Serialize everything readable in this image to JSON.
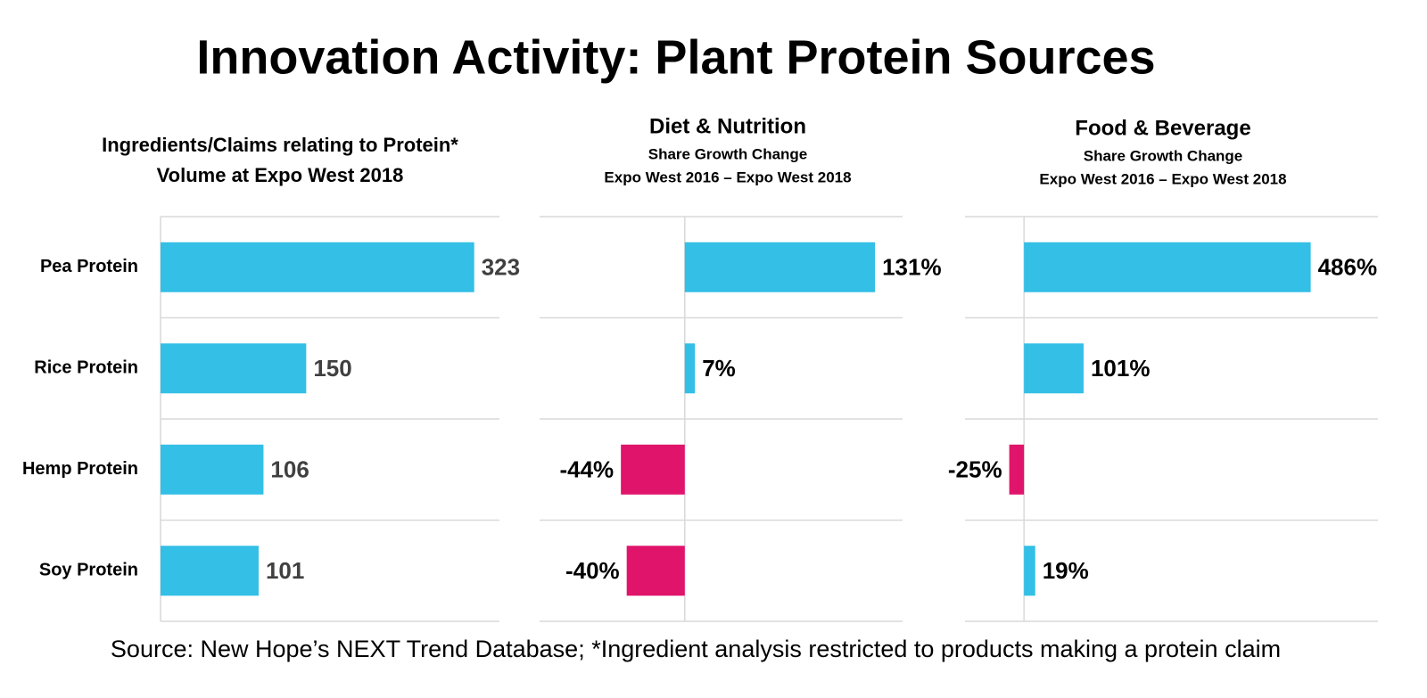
{
  "title": "Innovation Activity: Plant Protein Sources",
  "source": "Source: New Hope’s NEXT Trend Database; *Ingredient analysis restricted to products making a protein claim",
  "chart_data": [
    {
      "type": "bar",
      "orientation": "horizontal",
      "title": [
        "Ingredients/Claims relating to Protein*",
        "Volume at Expo West 2018"
      ],
      "categories": [
        "Pea Protein",
        "Rice Protein",
        "Hemp Protein",
        "Soy Protein"
      ],
      "values": [
        323,
        150,
        106,
        101
      ],
      "color": "#33bfe6",
      "xlim": [
        0,
        349
      ]
    },
    {
      "type": "bar",
      "orientation": "horizontal",
      "title": [
        "Diet & Nutrition"
      ],
      "subtitle": [
        "Share Growth Change",
        "Expo West 2016 – Expo West 2018"
      ],
      "values": [
        131,
        7,
        -44,
        -40
      ],
      "value_labels": [
        "131%",
        "7%",
        "-44%",
        "-40%"
      ],
      "color": "#33bfe6",
      "negative_color": "#e0146a",
      "xlim": [
        -100,
        150
      ]
    },
    {
      "type": "bar",
      "orientation": "horizontal",
      "title": [
        "Food & Beverage"
      ],
      "subtitle": [
        "Share Growth Change",
        "Expo West 2016 – Expo West 2018"
      ],
      "values": [
        486,
        101,
        -25,
        19
      ],
      "value_labels": [
        "486%",
        "101%",
        "-25%",
        "19%"
      ],
      "color": "#33bfe6",
      "negative_color": "#e0146a",
      "xlim": [
        -100,
        600
      ]
    }
  ]
}
